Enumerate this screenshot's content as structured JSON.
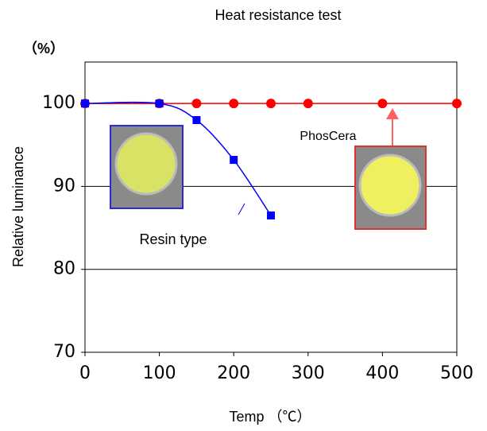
{
  "chart_data": {
    "type": "line",
    "title": "Heat resistance test",
    "x_label": "Temp （℃）",
    "y_label": "Relative luminance",
    "y_unit": "（%）",
    "xlim": [
      0,
      500
    ],
    "xticks": [
      0,
      100,
      200,
      300,
      400,
      500
    ],
    "ylim": [
      70,
      105
    ],
    "yticks": [
      70,
      80,
      90,
      100
    ],
    "grid": true,
    "series": [
      {
        "name": "PhosCera",
        "color": "#ff0000",
        "x": [
          0,
          100,
          150,
          200,
          250,
          300,
          400,
          500
        ],
        "values": [
          100,
          100,
          100,
          100,
          100,
          100,
          100,
          100
        ]
      },
      {
        "name": "Resin type",
        "color": "#0000ff",
        "x": [
          0,
          100,
          150,
          200,
          250
        ],
        "values": [
          100,
          100,
          98,
          93.2,
          86.5
        ]
      }
    ]
  }
}
